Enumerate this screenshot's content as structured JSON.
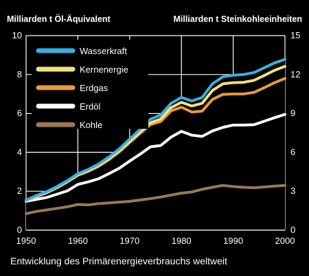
{
  "chart_data": {
    "type": "area",
    "title": "",
    "caption": "Entwicklung des Primärenergieverbrauchs weltweit",
    "ylabel_left": "Milliarden t Öl-Äquivalent",
    "ylabel_right": "Milliarden t Steinkohleeinheiten",
    "x_ticks": [
      "1950",
      "1960",
      "1970",
      "1980",
      "1990",
      "2000"
    ],
    "y_left_ticks": [
      "0",
      "2",
      "4",
      "6",
      "8",
      "10"
    ],
    "y_right_ticks": [
      "0",
      "3",
      "6",
      "9",
      "12",
      "15"
    ],
    "x_range": [
      1950,
      2000
    ],
    "y_left_range": [
      0,
      10
    ],
    "y_right_range": [
      0,
      15
    ],
    "stacked": true,
    "grid": true,
    "legend_position": "top-left",
    "x": [
      1950,
      1952,
      1954,
      1956,
      1958,
      1960,
      1962,
      1964,
      1966,
      1968,
      1970,
      1972,
      1974,
      1976,
      1978,
      1980,
      1982,
      1984,
      1986,
      1988,
      1990,
      1992,
      1994,
      1996,
      1998,
      2000
    ],
    "series": [
      {
        "name": "Wasserkraft",
        "color": "#3aaee2",
        "values": [
          1.55,
          1.78,
          1.98,
          2.25,
          2.55,
          2.9,
          3.12,
          3.4,
          3.76,
          4.18,
          4.68,
          5.18,
          5.7,
          5.92,
          6.52,
          6.82,
          6.64,
          6.82,
          7.52,
          7.88,
          7.96,
          8.0,
          8.1,
          8.35,
          8.6,
          8.78
        ]
      },
      {
        "name": "Kernenergie",
        "color": "#f4e17a",
        "values": [
          1.52,
          1.74,
          1.94,
          2.2,
          2.5,
          2.84,
          3.05,
          3.32,
          3.67,
          4.08,
          4.56,
          5.04,
          5.52,
          5.72,
          6.3,
          6.57,
          6.38,
          6.52,
          7.18,
          7.52,
          7.58,
          7.6,
          7.7,
          7.95,
          8.22,
          8.42
        ]
      },
      {
        "name": "Erdgas",
        "color": "#e89a3c",
        "values": [
          1.5,
          1.72,
          1.92,
          2.18,
          2.48,
          2.82,
          3.02,
          3.28,
          3.62,
          4.02,
          4.5,
          4.97,
          5.42,
          5.58,
          6.13,
          6.32,
          6.07,
          6.12,
          6.72,
          6.98,
          7.0,
          7.0,
          7.08,
          7.32,
          7.58,
          7.8
        ]
      },
      {
        "name": "Erdöl",
        "color": "#ffffff",
        "values": [
          1.48,
          1.58,
          1.68,
          1.85,
          2.02,
          2.35,
          2.48,
          2.64,
          2.9,
          3.18,
          3.55,
          3.9,
          4.28,
          4.35,
          4.78,
          5.08,
          4.88,
          4.82,
          5.1,
          5.28,
          5.4,
          5.4,
          5.42,
          5.6,
          5.78,
          5.95
        ]
      },
      {
        "name": "Kohle",
        "color": "#9a7a52",
        "values": [
          0.85,
          0.96,
          1.04,
          1.12,
          1.2,
          1.32,
          1.3,
          1.36,
          1.4,
          1.44,
          1.48,
          1.55,
          1.62,
          1.7,
          1.8,
          1.9,
          1.96,
          2.1,
          2.2,
          2.3,
          2.24,
          2.2,
          2.18,
          2.22,
          2.26,
          2.3
        ]
      }
    ]
  }
}
